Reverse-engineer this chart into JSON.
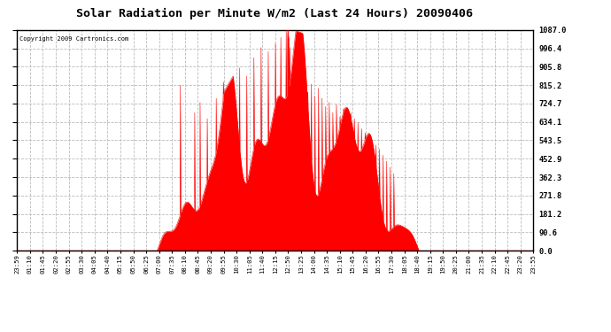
{
  "title": "Solar Radiation per Minute W/m2 (Last 24 Hours) 20090406",
  "copyright": "Copyright 2009 Cartronics.com",
  "bg_color": "#ffffff",
  "plot_bg_color": "#ffffff",
  "bar_color": "#ff0000",
  "grid_color": "#cccccc",
  "border_color": "#000000",
  "ymin": 0.0,
  "ymax": 1087.0,
  "yticks": [
    0.0,
    90.6,
    181.2,
    271.8,
    362.3,
    452.9,
    543.5,
    634.1,
    724.7,
    815.2,
    905.8,
    996.4,
    1087.0
  ],
  "xtick_labels": [
    "23:59",
    "01:10",
    "01:45",
    "02:20",
    "02:55",
    "03:30",
    "04:05",
    "04:40",
    "05:15",
    "05:50",
    "06:25",
    "07:00",
    "07:35",
    "08:10",
    "08:45",
    "09:20",
    "09:55",
    "10:30",
    "11:05",
    "11:40",
    "12:15",
    "12:50",
    "13:25",
    "14:00",
    "14:35",
    "15:10",
    "15:45",
    "16:20",
    "16:55",
    "17:30",
    "18:05",
    "18:40",
    "19:15",
    "19:50",
    "20:25",
    "21:00",
    "21:35",
    "22:10",
    "22:45",
    "23:20",
    "23:55"
  ],
  "dashed_line_color": "#bbbbbb",
  "red_baseline_color": "#ff0000",
  "sunrise_minute": 390,
  "sunset_minute": 1120,
  "solar_noon_minute": 755,
  "peak_value": 1087.0
}
